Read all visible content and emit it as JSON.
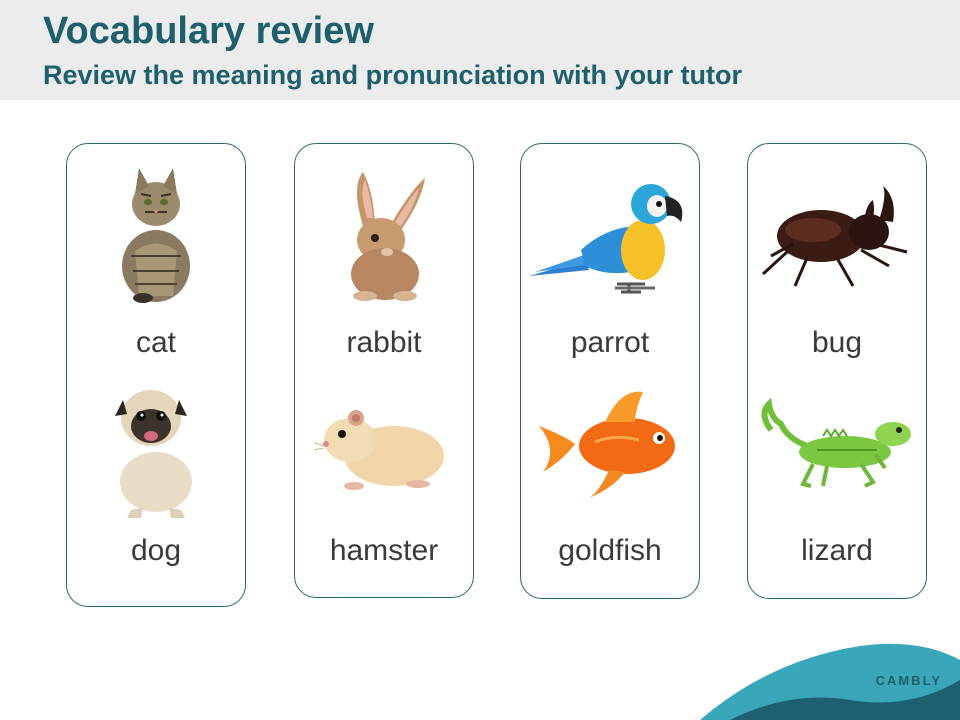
{
  "header": {
    "title": "Vocabulary review",
    "subtitle": "Review the meaning and pronunciation with your tutor"
  },
  "cards": [
    {
      "top": {
        "word": "cat",
        "icon": "cat-icon"
      },
      "bottom": {
        "word": "dog",
        "icon": "dog-icon"
      }
    },
    {
      "top": {
        "word": "rabbit",
        "icon": "rabbit-icon"
      },
      "bottom": {
        "word": "hamster",
        "icon": "hamster-icon"
      }
    },
    {
      "top": {
        "word": "parrot",
        "icon": "parrot-icon"
      },
      "bottom": {
        "word": "goldfish",
        "icon": "goldfish-icon"
      }
    },
    {
      "top": {
        "word": "bug",
        "icon": "bug-icon"
      },
      "bottom": {
        "word": "lizard",
        "icon": "lizard-icon"
      }
    }
  ],
  "footer": {
    "brand": "CAMBLY"
  },
  "colors": {
    "accent": "#1e5f6e",
    "header_bg": "#ececec",
    "card_border": "#2a6877",
    "wave_light": "#3aa6b9",
    "wave_dark": "#1f5f72"
  }
}
